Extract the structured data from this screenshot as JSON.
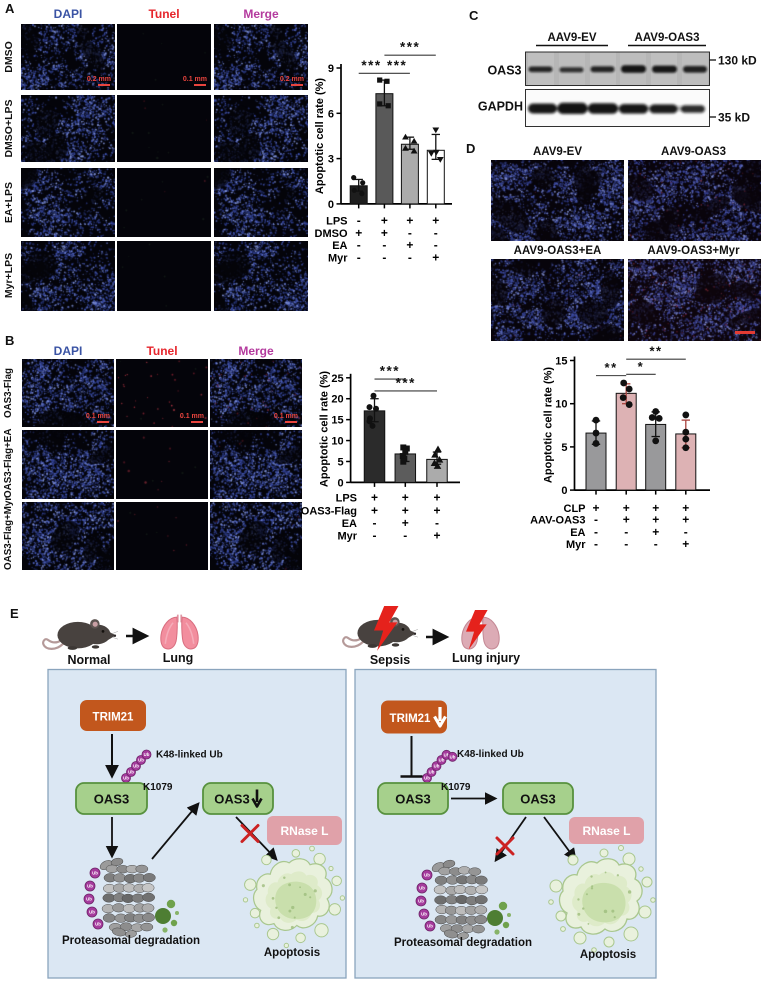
{
  "panel_a": {
    "label": "A",
    "col_headers": [
      {
        "text": "DAPI",
        "color": "#3a53a4"
      },
      {
        "text": "Tunel",
        "color": "#e6252c"
      },
      {
        "text": "Merge",
        "color": "#b43a9e"
      }
    ],
    "row_labels": [
      "DMSO",
      "DMSO+LPS",
      "EA+LPS",
      "Myr+LPS"
    ],
    "scale_labels": [
      "0.2 mm",
      "0.1 mm",
      "0.2 mm"
    ]
  },
  "panel_b": {
    "label": "B",
    "col_headers": [
      {
        "text": "DAPI",
        "color": "#3a53a4"
      },
      {
        "text": "Tunel",
        "color": "#e6252c"
      },
      {
        "text": "Merge",
        "color": "#b43a9e"
      }
    ],
    "row_labels": [
      "OAS3-Flag",
      "OAS3-Flag+EA",
      "OAS3-Flag+Myr"
    ],
    "scale_labels": [
      "0.1 mm",
      "0.1 mm",
      "0.1 mm"
    ]
  },
  "panel_c": {
    "label": "C",
    "group_labels": [
      "AAV9-EV",
      "AAV9-OAS3"
    ],
    "blot_labels": [
      "OAS3",
      "GAPDH"
    ],
    "marker_labels": [
      "130 kD",
      "35 kD"
    ]
  },
  "panel_d": {
    "label": "D",
    "image_titles": [
      "AAV9-EV",
      "AAV9-OAS3",
      "AAV9-OAS3+EA",
      "AAV9-OAS3+Myr"
    ]
  },
  "panel_e": {
    "label": "E",
    "left_scene": {
      "subject": "Normal",
      "organ": "Lung"
    },
    "right_scene": {
      "subject": "Sepsis",
      "organ": "Lung injury"
    },
    "left_box": {
      "trim21": "TRIM21",
      "k48": "K48-linked Ub",
      "k1079": "K1079",
      "oas3_top": "OAS3",
      "oas3_down": "OAS3",
      "rnase": "RNase L",
      "proteasome_label": "Proteasomal degradation",
      "apoptosis_label": "Apoptosis"
    },
    "right_box": {
      "trim21": "TRIM21",
      "k48": "K48-linked Ub",
      "k1079": "K1079",
      "oas3_left": "OAS3",
      "oas3_right": "OAS3",
      "rnase": "RNase L",
      "proteasome_label": "Proteasomal degradation",
      "apoptosis_label": "Apoptosis"
    },
    "ub": "Ub"
  },
  "chart_data": [
    {
      "id": "a",
      "type": "bar",
      "title": "",
      "xlabel": "",
      "ylabel": "Apoptotic cell rate (%)",
      "ylim": [
        0,
        9
      ],
      "yticks": [
        0,
        3,
        6,
        9
      ],
      "bars": [
        {
          "value": 1.2,
          "err_lo": 0.85,
          "err_hi": 1.62,
          "fill": "#1e1e1e",
          "marker": "circle",
          "points": [
            [
              -5,
              1.74
            ],
            [
              4,
              1.4
            ],
            [
              -4.5,
              0.9
            ],
            [
              3.2,
              0.68
            ]
          ]
        },
        {
          "value": 7.3,
          "err_lo": 6.5,
          "err_hi": 8.2,
          "fill": "#595959",
          "marker": "square",
          "points": [
            [
              -4.7,
              8.2
            ],
            [
              2.6,
              8.12
            ],
            [
              -4.7,
              6.62
            ],
            [
              3.8,
              6.5
            ]
          ]
        },
        {
          "value": 3.95,
          "err_lo": 3.62,
          "err_hi": 4.42,
          "fill": "#ababab",
          "marker": "triangle_up",
          "points": [
            [
              -4.4,
              4.42
            ],
            [
              4.2,
              4.15
            ],
            [
              -4.4,
              3.68
            ],
            [
              4.2,
              3.5
            ]
          ]
        },
        {
          "value": 3.55,
          "err_lo": 2.95,
          "err_hi": 4.6,
          "fill": "#ffffff",
          "marker": "triangle_down",
          "points": [
            [
              0,
              4.9
            ],
            [
              -4.5,
              3.35
            ],
            [
              0.5,
              3.42
            ],
            [
              4.5,
              2.95
            ]
          ]
        }
      ],
      "significance": [
        {
          "from": 0,
          "to": 1,
          "y": 8.65,
          "label": "***"
        },
        {
          "from": 1,
          "to": 2,
          "y": 8.65,
          "label": "***"
        },
        {
          "from": 1,
          "to": 3,
          "y": 9.85,
          "label": "***"
        }
      ],
      "treatments": {
        "labels": [
          "LPS",
          "DMSO",
          "EA",
          "Myr"
        ],
        "values": [
          [
            "-",
            "+",
            "+",
            "+"
          ],
          [
            "+",
            "+",
            "-",
            "-"
          ],
          [
            "-",
            "-",
            "+",
            "-"
          ],
          [
            "-",
            "-",
            "-",
            "+"
          ]
        ]
      }
    },
    {
      "id": "b",
      "type": "bar",
      "title": "",
      "xlabel": "",
      "ylabel": "Apoptotic cell rate (%)",
      "ylim": [
        0,
        25
      ],
      "yticks": [
        0,
        5,
        10,
        15,
        20,
        25
      ],
      "bars": [
        {
          "value": 17.1,
          "err_lo": 14.5,
          "err_hi": 20.0,
          "fill": "#2b2b2b",
          "marker": "circle",
          "points": [
            [
              -1,
              20.7
            ],
            [
              -5,
              18.0
            ],
            [
              1.5,
              17.6
            ],
            [
              -4.5,
              15.3
            ],
            [
              -5,
              14.6
            ],
            [
              -2,
              13.5
            ]
          ]
        },
        {
          "value": 6.8,
          "err_lo": 5.0,
          "err_hi": 8.35,
          "fill": "#5c5c5c",
          "marker": "square",
          "points": [
            [
              -2,
              8.35
            ],
            [
              1.5,
              8.1
            ],
            [
              0,
              7.3
            ],
            [
              -2.5,
              6.3
            ],
            [
              -1,
              5.7
            ],
            [
              -2,
              4.95
            ]
          ]
        },
        {
          "value": 5.5,
          "err_lo": 4.35,
          "err_hi": 7.25,
          "fill": "#ababab",
          "marker": "triangle_up",
          "points": [
            [
              1,
              7.9
            ],
            [
              -2,
              6.6
            ],
            [
              2.5,
              5.4
            ],
            [
              -2.5,
              4.6
            ],
            [
              0.5,
              3.9
            ]
          ]
        }
      ],
      "significance": [
        {
          "from": 0,
          "to": 1,
          "y": 24.7,
          "label": "***"
        },
        {
          "from": 0,
          "to": 2,
          "y": 21.85,
          "label": "***"
        }
      ],
      "treatments": {
        "labels": [
          "LPS",
          "OAS3-Flag",
          "EA",
          "Myr"
        ],
        "values": [
          [
            "+",
            "+",
            "+"
          ],
          [
            "+",
            "+",
            "+"
          ],
          [
            "-",
            "+",
            "-"
          ],
          [
            "-",
            "-",
            "+"
          ]
        ]
      }
    },
    {
      "id": "d",
      "type": "bar",
      "title": "",
      "xlabel": "",
      "ylabel": "Apoptotic cell rate (%)",
      "ylim": [
        0,
        15
      ],
      "yticks": [
        0,
        5,
        10,
        15
      ],
      "bars": [
        {
          "value": 6.6,
          "err_lo": 5.3,
          "err_hi": 8.0,
          "fill": "#99999b",
          "marker": "circle",
          "points": [
            [
              0,
              8.1
            ],
            [
              0,
              6.6
            ],
            [
              0,
              5.4
            ]
          ]
        },
        {
          "value": 11.2,
          "err_lo": 10.0,
          "err_hi": 12.3,
          "fill": "#ddb2b4",
          "err_color": "#a8423d",
          "marker": "circle",
          "points": [
            [
              -2.5,
              12.4
            ],
            [
              3,
              11.7
            ],
            [
              -3,
              10.7
            ],
            [
              3,
              9.9
            ]
          ]
        },
        {
          "value": 7.6,
          "err_lo": 6.2,
          "err_hi": 9.05,
          "fill": "#99999b",
          "marker": "circle",
          "points": [
            [
              0,
              9.1
            ],
            [
              -3.5,
              8.4
            ],
            [
              3.5,
              8.3
            ],
            [
              0,
              5.7
            ]
          ]
        },
        {
          "value": 6.5,
          "err_lo": 4.9,
          "err_hi": 8.1,
          "fill": "#ddb2b4",
          "err_color": "#a8423d",
          "marker": "circle",
          "points": [
            [
              0,
              8.7
            ],
            [
              0,
              6.7
            ],
            [
              0,
              5.9
            ],
            [
              0,
              4.9
            ]
          ]
        }
      ],
      "significance": [
        {
          "from": 0,
          "to": 1,
          "y": 13.25,
          "label": "**"
        },
        {
          "from": 1,
          "to": 2,
          "y": 13.4,
          "label": "*"
        },
        {
          "from": 1,
          "to": 3,
          "y": 15.15,
          "label": "**"
        }
      ],
      "treatments": {
        "labels": [
          "CLP",
          "AAV-OAS3",
          "EA",
          "Myr"
        ],
        "values": [
          [
            "+",
            "+",
            "+",
            "+"
          ],
          [
            "-",
            "+",
            "+",
            "+"
          ],
          [
            "-",
            "-",
            "+",
            "-"
          ],
          [
            "-",
            "-",
            "-",
            "+"
          ]
        ]
      }
    }
  ],
  "colors": {
    "dapi_header": "#3a53a4",
    "tunel_header": "#e6252c",
    "merge_header": "#b43a9e",
    "scale_annotation": "#e8443e",
    "diagram_box_fill": "#dbe7f3",
    "diagram_box_border": "#8aa4bd",
    "trim21_fill": "#c2571d",
    "oas3_fill": "#a6d08c",
    "oas3_border": "#57913e",
    "rnase_fill": "#e0a1a9",
    "ub_fill": "#a53b9d",
    "lightning_red": "#e5221c",
    "pink_bar": "#ddb2b4",
    "gray_bar": "#99999b"
  }
}
